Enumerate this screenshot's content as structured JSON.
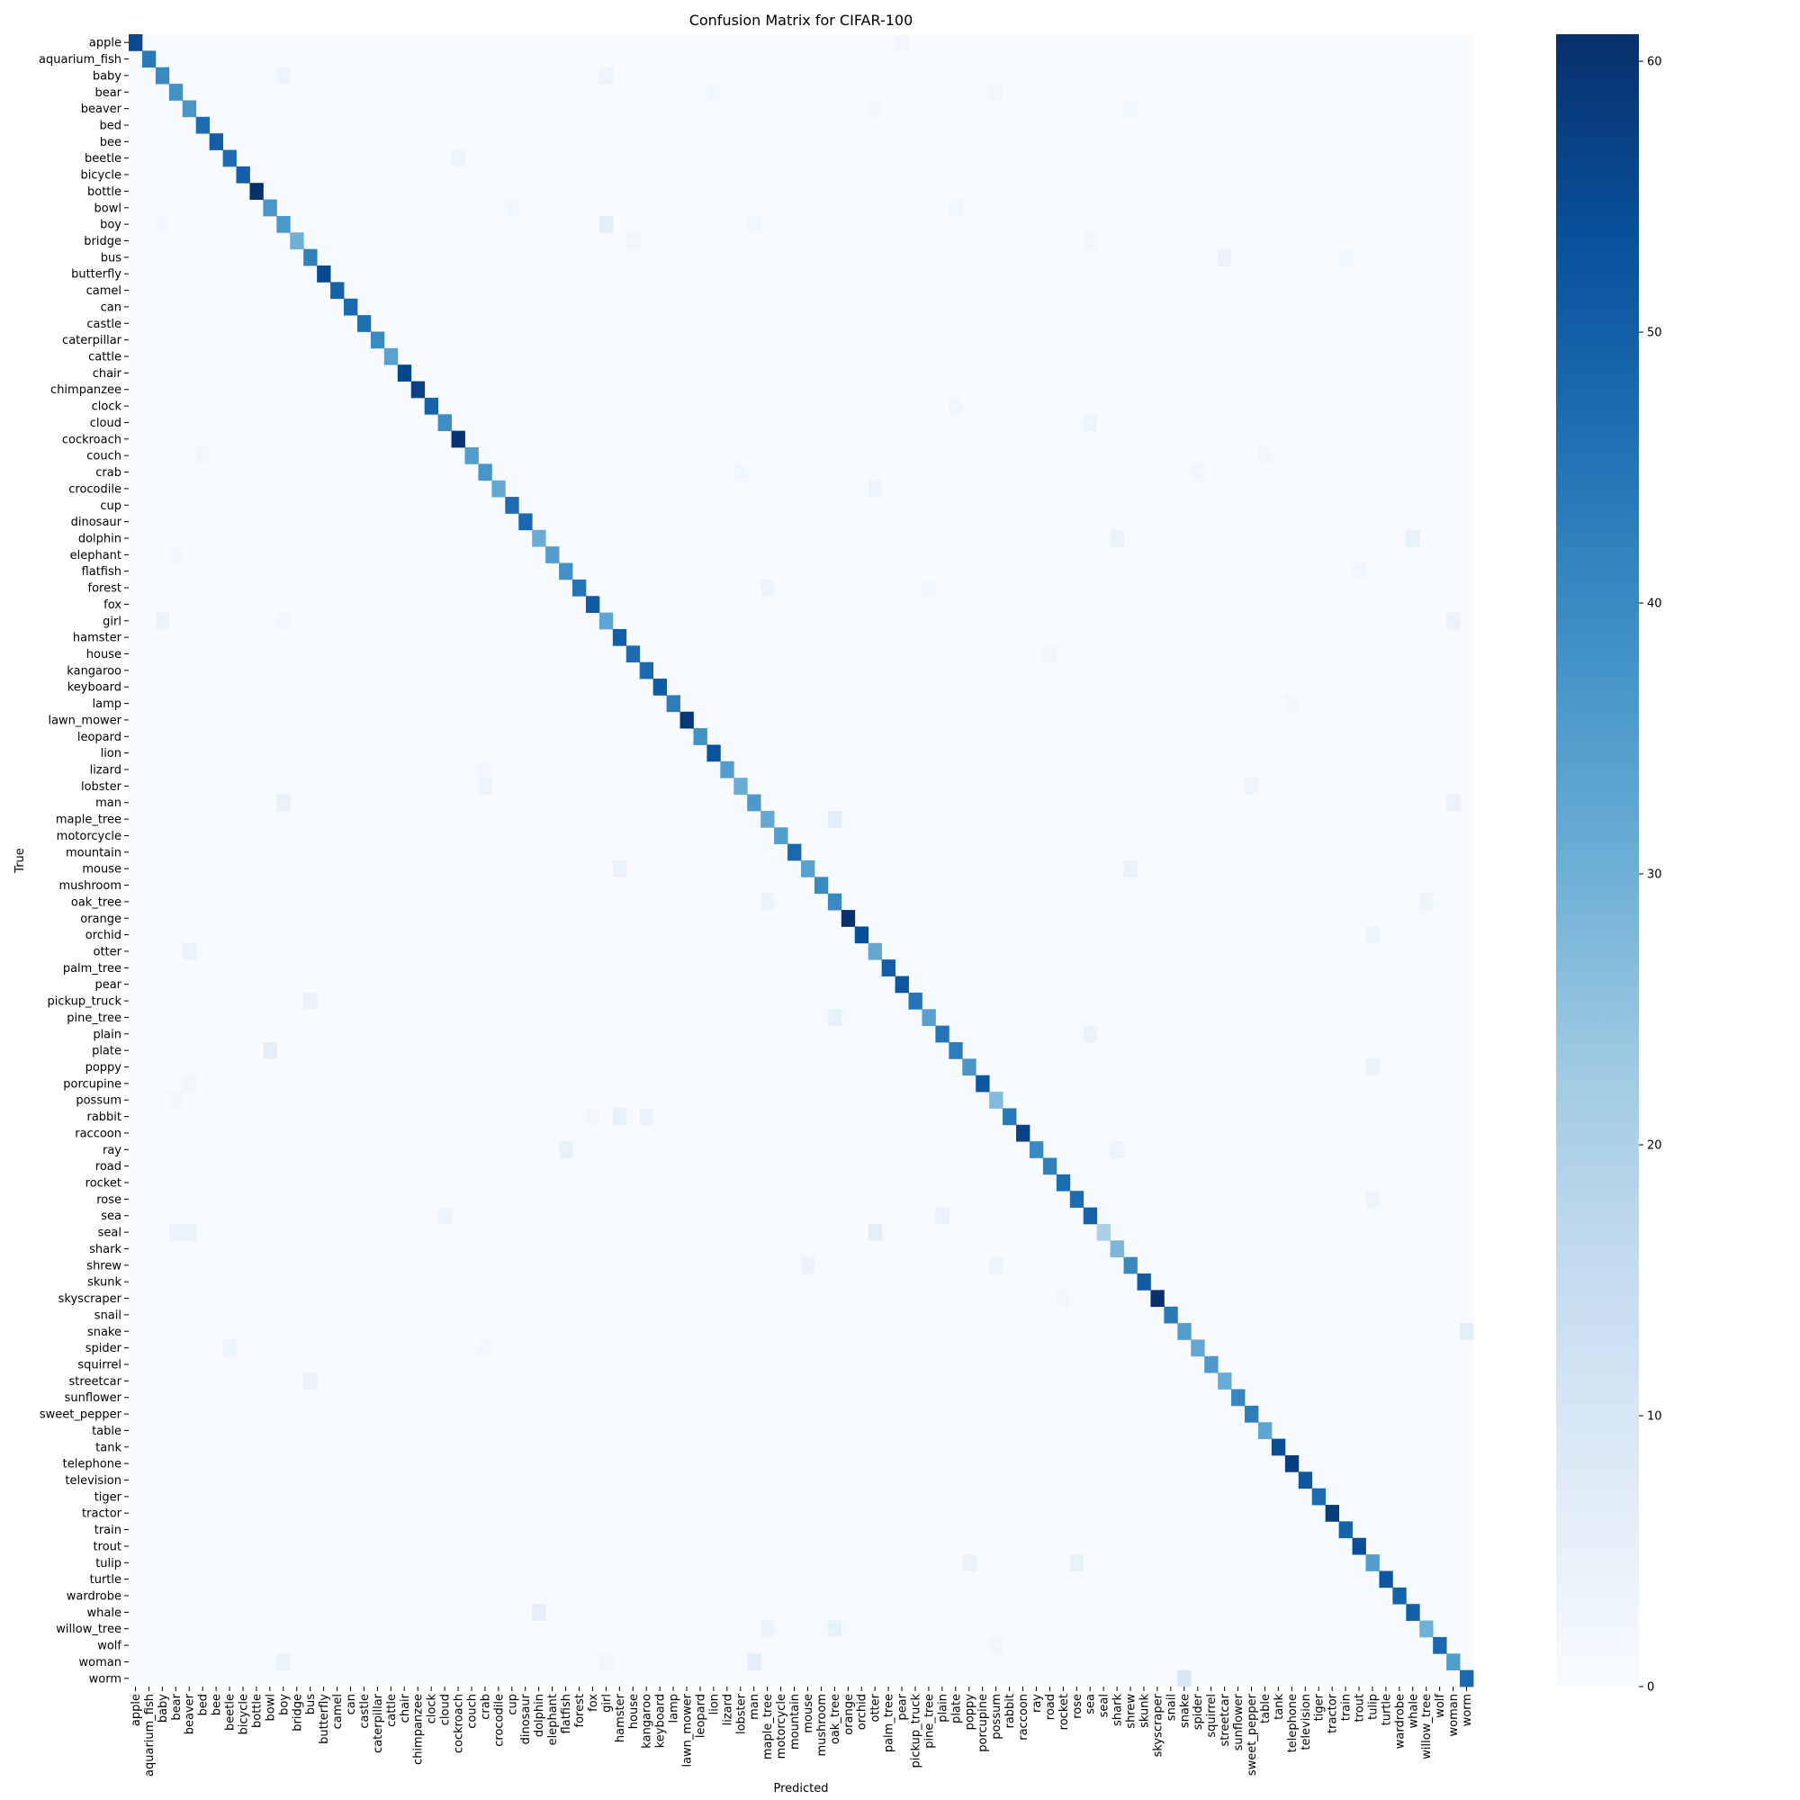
{
  "chart_data": {
    "type": "heatmap",
    "title": "Confusion Matrix for CIFAR-100",
    "xlabel": "Predicted",
    "ylabel": "True",
    "colormap": "Blues",
    "color_low": "#f7fbff",
    "color_high": "#08306b",
    "vmin": 0,
    "vmax": 61,
    "colorbar_ticks": [
      0,
      10,
      20,
      30,
      40,
      50,
      60
    ],
    "categories": [
      "apple",
      "aquarium_fish",
      "baby",
      "bear",
      "beaver",
      "bed",
      "bee",
      "beetle",
      "bicycle",
      "bottle",
      "bowl",
      "boy",
      "bridge",
      "bus",
      "butterfly",
      "camel",
      "can",
      "castle",
      "caterpillar",
      "cattle",
      "chair",
      "chimpanzee",
      "clock",
      "cloud",
      "cockroach",
      "couch",
      "crab",
      "crocodile",
      "cup",
      "dinosaur",
      "dolphin",
      "elephant",
      "flatfish",
      "forest",
      "fox",
      "girl",
      "hamster",
      "house",
      "kangaroo",
      "keyboard",
      "lamp",
      "lawn_mower",
      "leopard",
      "lion",
      "lizard",
      "lobster",
      "man",
      "maple_tree",
      "motorcycle",
      "mountain",
      "mouse",
      "mushroom",
      "oak_tree",
      "orange",
      "orchid",
      "otter",
      "palm_tree",
      "pear",
      "pickup_truck",
      "pine_tree",
      "plain",
      "plate",
      "poppy",
      "porcupine",
      "possum",
      "rabbit",
      "raccoon",
      "ray",
      "road",
      "rocket",
      "rose",
      "sea",
      "seal",
      "shark",
      "shrew",
      "skunk",
      "skyscraper",
      "snail",
      "snake",
      "spider",
      "squirrel",
      "streetcar",
      "sunflower",
      "sweet_pepper",
      "table",
      "tank",
      "telephone",
      "television",
      "tiger",
      "tractor",
      "train",
      "trout",
      "tulip",
      "turtle",
      "wardrobe",
      "whale",
      "willow_tree",
      "wolf",
      "woman",
      "worm"
    ],
    "diagonal": [
      55,
      44,
      40,
      38,
      37,
      47,
      50,
      47,
      50,
      61,
      37,
      36,
      30,
      42,
      55,
      49,
      48,
      46,
      40,
      34,
      56,
      57,
      49,
      39,
      60,
      35,
      37,
      32,
      47,
      48,
      31,
      35,
      38,
      45,
      51,
      33,
      50,
      47,
      48,
      51,
      43,
      59,
      38,
      53,
      35,
      31,
      36,
      32,
      35,
      48,
      34,
      40,
      40,
      61,
      54,
      32,
      50,
      52,
      45,
      34,
      45,
      43,
      37,
      52,
      27,
      44,
      57,
      40,
      42,
      47,
      47,
      49,
      20,
      28,
      40,
      51,
      62,
      44,
      35,
      32,
      36,
      31,
      41,
      43,
      33,
      54,
      58,
      52,
      47,
      58,
      49,
      54,
      35,
      52,
      49,
      50,
      30,
      48,
      35,
      48
    ],
    "off_diagonal": [
      {
        "t": "apple",
        "p": "pear",
        "v": 2
      },
      {
        "t": "baby",
        "p": "boy",
        "v": 3
      },
      {
        "t": "baby",
        "p": "girl",
        "v": 3
      },
      {
        "t": "bear",
        "p": "lion",
        "v": 2
      },
      {
        "t": "bear",
        "p": "possum",
        "v": 2
      },
      {
        "t": "beaver",
        "p": "otter",
        "v": 2
      },
      {
        "t": "beaver",
        "p": "shrew",
        "v": 2
      },
      {
        "t": "beetle",
        "p": "cockroach",
        "v": 3
      },
      {
        "t": "bowl",
        "p": "cup",
        "v": 2
      },
      {
        "t": "bowl",
        "p": "plate",
        "v": 2
      },
      {
        "t": "boy",
        "p": "baby",
        "v": 2
      },
      {
        "t": "boy",
        "p": "girl",
        "v": 6
      },
      {
        "t": "boy",
        "p": "man",
        "v": 2
      },
      {
        "t": "bridge",
        "p": "house",
        "v": 2
      },
      {
        "t": "bridge",
        "p": "sea",
        "v": 2
      },
      {
        "t": "bus",
        "p": "streetcar",
        "v": 4
      },
      {
        "t": "bus",
        "p": "train",
        "v": 2
      },
      {
        "t": "camel",
        "p": "wolf",
        "v": 1
      },
      {
        "t": "clock",
        "p": "plate",
        "v": 2
      },
      {
        "t": "cloud",
        "p": "sea",
        "v": 3
      },
      {
        "t": "couch",
        "p": "bed",
        "v": 2
      },
      {
        "t": "couch",
        "p": "table",
        "v": 2
      },
      {
        "t": "crab",
        "p": "lobster",
        "v": 2
      },
      {
        "t": "crab",
        "p": "spider",
        "v": 2
      },
      {
        "t": "crocodile",
        "p": "otter",
        "v": 3
      },
      {
        "t": "dolphin",
        "p": "shark",
        "v": 4
      },
      {
        "t": "dolphin",
        "p": "whale",
        "v": 5
      },
      {
        "t": "elephant",
        "p": "bear",
        "v": 2
      },
      {
        "t": "flatfish",
        "p": "trout",
        "v": 2
      },
      {
        "t": "forest",
        "p": "maple_tree",
        "v": 3
      },
      {
        "t": "forest",
        "p": "pine_tree",
        "v": 2
      },
      {
        "t": "girl",
        "p": "baby",
        "v": 4
      },
      {
        "t": "girl",
        "p": "boy",
        "v": 2
      },
      {
        "t": "girl",
        "p": "woman",
        "v": 4
      },
      {
        "t": "house",
        "p": "road",
        "v": 2
      },
      {
        "t": "lamp",
        "p": "telephone",
        "v": 2
      },
      {
        "t": "lizard",
        "p": "crab",
        "v": 2
      },
      {
        "t": "lobster",
        "p": "crab",
        "v": 3
      },
      {
        "t": "lobster",
        "p": "sweet_pepper",
        "v": 3
      },
      {
        "t": "man",
        "p": "boy",
        "v": 5
      },
      {
        "t": "man",
        "p": "woman",
        "v": 4
      },
      {
        "t": "maple_tree",
        "p": "oak_tree",
        "v": 6
      },
      {
        "t": "mouse",
        "p": "hamster",
        "v": 4
      },
      {
        "t": "mouse",
        "p": "shrew",
        "v": 4
      },
      {
        "t": "oak_tree",
        "p": "maple_tree",
        "v": 4
      },
      {
        "t": "oak_tree",
        "p": "willow_tree",
        "v": 3
      },
      {
        "t": "orchid",
        "p": "tulip",
        "v": 3
      },
      {
        "t": "otter",
        "p": "beaver",
        "v": 4
      },
      {
        "t": "pickup_truck",
        "p": "bus",
        "v": 4
      },
      {
        "t": "pine_tree",
        "p": "oak_tree",
        "v": 5
      },
      {
        "t": "plain",
        "p": "sea",
        "v": 4
      },
      {
        "t": "plate",
        "p": "bowl",
        "v": 6
      },
      {
        "t": "poppy",
        "p": "tulip",
        "v": 4
      },
      {
        "t": "porcupine",
        "p": "beaver",
        "v": 2
      },
      {
        "t": "possum",
        "p": "bear",
        "v": 2
      },
      {
        "t": "rabbit",
        "p": "hamster",
        "v": 5
      },
      {
        "t": "rabbit",
        "p": "kangaroo",
        "v": 4
      },
      {
        "t": "rabbit",
        "p": "fox",
        "v": 2
      },
      {
        "t": "ray",
        "p": "flatfish",
        "v": 5
      },
      {
        "t": "ray",
        "p": "shark",
        "v": 3
      },
      {
        "t": "rose",
        "p": "tulip",
        "v": 3
      },
      {
        "t": "sea",
        "p": "cloud",
        "v": 3
      },
      {
        "t": "sea",
        "p": "plain",
        "v": 4
      },
      {
        "t": "seal",
        "p": "bear",
        "v": 4
      },
      {
        "t": "seal",
        "p": "beaver",
        "v": 4
      },
      {
        "t": "seal",
        "p": "otter",
        "v": 6
      },
      {
        "t": "shrew",
        "p": "mouse",
        "v": 4
      },
      {
        "t": "shrew",
        "p": "possum",
        "v": 3
      },
      {
        "t": "skyscraper",
        "p": "rocket",
        "v": 2
      },
      {
        "t": "snake",
        "p": "worm",
        "v": 6
      },
      {
        "t": "spider",
        "p": "beetle",
        "v": 3
      },
      {
        "t": "spider",
        "p": "crab",
        "v": 2
      },
      {
        "t": "streetcar",
        "p": "bus",
        "v": 4
      },
      {
        "t": "tulip",
        "p": "poppy",
        "v": 4
      },
      {
        "t": "tulip",
        "p": "rose",
        "v": 5
      },
      {
        "t": "whale",
        "p": "dolphin",
        "v": 6
      },
      {
        "t": "willow_tree",
        "p": "maple_tree",
        "v": 4
      },
      {
        "t": "willow_tree",
        "p": "oak_tree",
        "v": 5
      },
      {
        "t": "wolf",
        "p": "possum",
        "v": 2
      },
      {
        "t": "woman",
        "p": "boy",
        "v": 4
      },
      {
        "t": "woman",
        "p": "man",
        "v": 6
      },
      {
        "t": "woman",
        "p": "girl",
        "v": 2
      },
      {
        "t": "worm",
        "p": "snake",
        "v": 10
      }
    ]
  }
}
